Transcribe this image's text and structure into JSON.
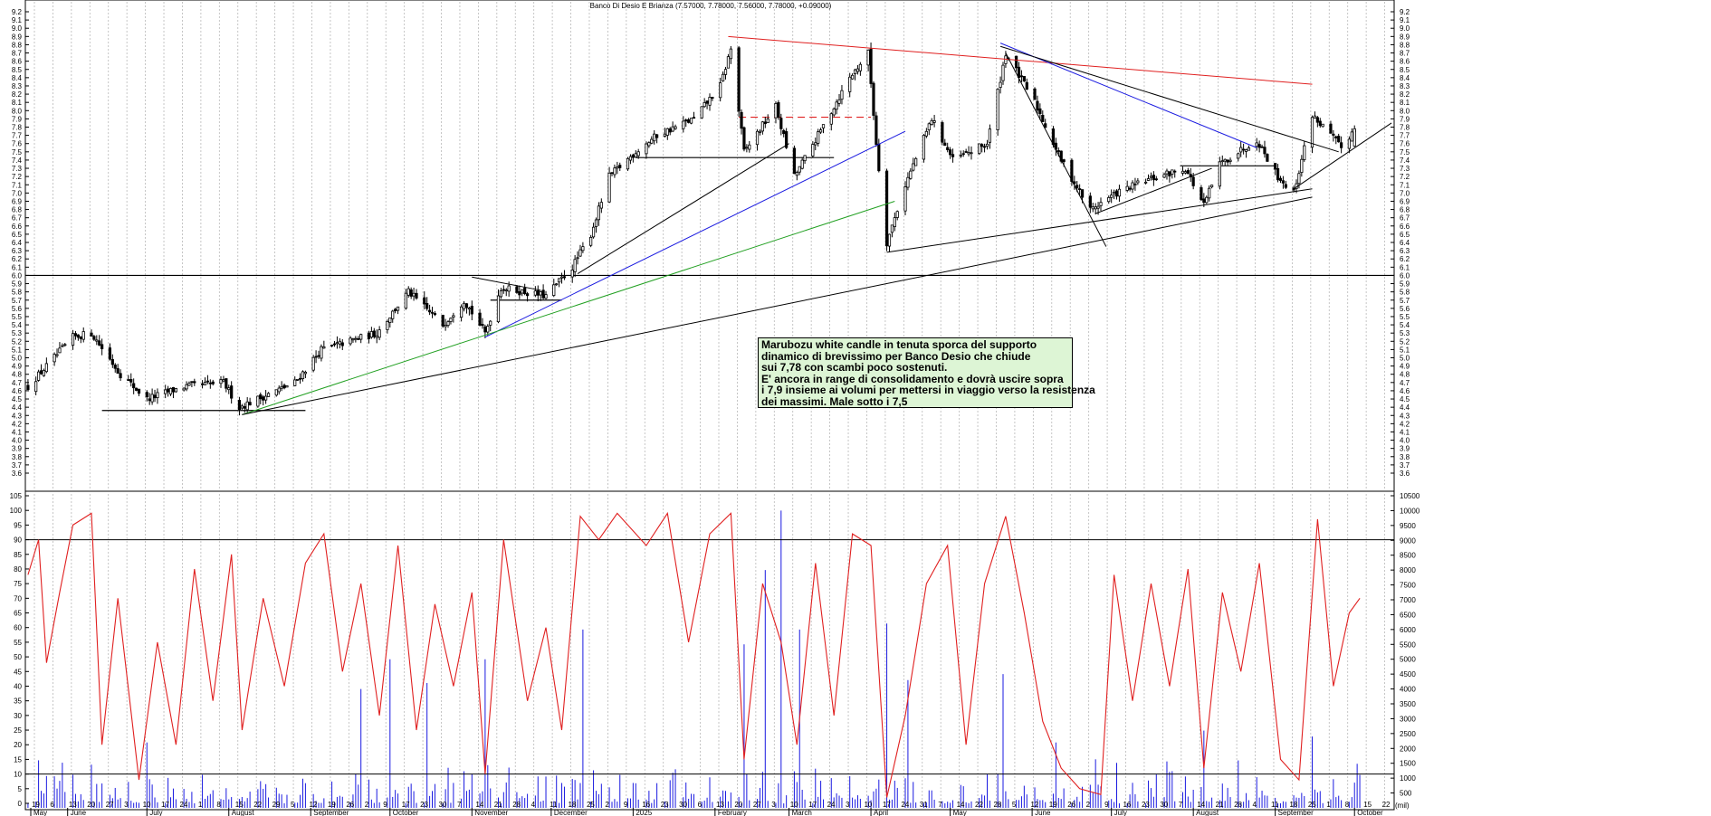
{
  "title": "Banco Di Desio E Brianza (7.57000, 7.78000, 7.56000, 7.78000, +0.09000)",
  "annotation": {
    "lines": [
      "Marubozu white candle in tenuta sporca del supporto",
      "dinamico di brevissimo per Banco Desio che chiude",
      "sui 7,78 con scambi poco sostenuti.",
      "E' ancora in range di consolidamento e dovrà uscire sopra",
      "i 7,9 insieme ai volumi per mettersi in viaggio verso la resistenza",
      "dei massimi. Male sotto i 7,5"
    ]
  },
  "price_axis_ticks": [
    "9.2",
    "9.1",
    "9.0",
    "8.9",
    "8.8",
    "8.7",
    "8.6",
    "8.5",
    "8.4",
    "8.3",
    "8.2",
    "8.1",
    "8.0",
    "7.9",
    "7.8",
    "7.7",
    "7.6",
    "7.5",
    "7.4",
    "7.3",
    "7.2",
    "7.1",
    "7.0",
    "6.9",
    "6.8",
    "6.7",
    "6.6",
    "6.5",
    "6.4",
    "6.3",
    "6.2",
    "6.1",
    "6.0",
    "5.9",
    "5.8",
    "5.7",
    "5.6",
    "5.5",
    "5.4",
    "5.3",
    "5.2",
    "5.1",
    "5.0",
    "4.9",
    "4.8",
    "4.7",
    "4.6",
    "4.5",
    "4.4",
    "4.3",
    "4.2",
    "4.1",
    "4.0",
    "3.9",
    "3.8",
    "3.7",
    "3.6"
  ],
  "osc_axis_ticks": [
    "105",
    "100",
    "95",
    "90",
    "85",
    "80",
    "75",
    "70",
    "65",
    "60",
    "55",
    "50",
    "45",
    "40",
    "35",
    "30",
    "25",
    "20",
    "15",
    "10",
    "5",
    "0"
  ],
  "volume_axis_ticks": [
    "10500",
    "10000",
    "9500",
    "9000",
    "8500",
    "8000",
    "7500",
    "7000",
    "6500",
    "6000",
    "5500",
    "5000",
    "4500",
    "4000",
    "3500",
    "3000",
    "2500",
    "2000",
    "1500",
    "1000",
    "500"
  ],
  "volume_unit": "(mil)",
  "date_axis": {
    "days": [
      "19",
      "6",
      "13",
      "20",
      "27",
      "3",
      "10",
      "17",
      "24",
      "1",
      "8",
      "15",
      "22",
      "29",
      "5",
      "12",
      "19",
      "26",
      "2",
      "9",
      "17",
      "23",
      "30",
      "7",
      "14",
      "21",
      "28",
      "4",
      "11",
      "18",
      "25",
      "2",
      "9",
      "16",
      "23",
      "30",
      "6",
      "13",
      "20",
      "27",
      "3",
      "10",
      "17",
      "24",
      "3",
      "10",
      "17",
      "24",
      "31",
      "7",
      "14",
      "22",
      "28",
      "5",
      "12",
      "19",
      "26",
      "2",
      "9",
      "16",
      "23",
      "30",
      "7",
      "14",
      "21",
      "28",
      "4",
      "11",
      "18",
      "25",
      "1",
      "8",
      "15",
      "22",
      "29",
      "6",
      "13"
    ],
    "months": [
      "May",
      "June",
      "July",
      "August",
      "September",
      "October",
      "November",
      "December",
      "2025",
      "February",
      "March",
      "April",
      "May",
      "June",
      "July",
      "August",
      "September",
      "October"
    ]
  },
  "chart_data": {
    "type": "candlestick",
    "title": "Banco Di Desio E Brianza (7.57000, 7.78000, 7.56000, 7.78000, +0.09000)",
    "last_bar": {
      "open": 7.57,
      "high": 7.78,
      "low": 7.56,
      "close": 7.78,
      "change": 0.09
    },
    "x_range": [
      "May 2024",
      "October 2025"
    ],
    "price_range": [
      3.6,
      9.2
    ],
    "price_anchors": [
      {
        "date": "2024-05-17",
        "close": 4.65
      },
      {
        "date": "2024-06-03",
        "close": 5.25
      },
      {
        "date": "2024-06-10",
        "close": 5.3
      },
      {
        "date": "2024-06-21",
        "close": 4.8
      },
      {
        "date": "2024-07-01",
        "close": 4.5
      },
      {
        "date": "2024-07-15",
        "close": 4.65
      },
      {
        "date": "2024-07-30",
        "close": 4.7
      },
      {
        "date": "2024-08-05",
        "close": 4.4
      },
      {
        "date": "2024-08-26",
        "close": 4.7
      },
      {
        "date": "2024-09-05",
        "close": 5.1
      },
      {
        "date": "2024-09-26",
        "close": 5.3
      },
      {
        "date": "2024-10-08",
        "close": 5.8
      },
      {
        "date": "2024-10-21",
        "close": 5.4
      },
      {
        "date": "2024-10-29",
        "close": 5.7
      },
      {
        "date": "2024-11-06",
        "close": 5.3
      },
      {
        "date": "2024-11-12",
        "close": 5.85
      },
      {
        "date": "2024-11-29",
        "close": 5.75
      },
      {
        "date": "2024-12-09",
        "close": 6.1
      },
      {
        "date": "2024-12-16",
        "close": 6.5
      },
      {
        "date": "2024-12-23",
        "close": 7.2
      },
      {
        "date": "2025-01-02",
        "close": 7.5
      },
      {
        "date": "2025-01-10",
        "close": 7.7
      },
      {
        "date": "2025-01-24",
        "close": 7.9
      },
      {
        "date": "2025-02-03",
        "close": 8.3
      },
      {
        "date": "2025-02-07",
        "close": 8.75
      },
      {
        "date": "2025-02-12",
        "close": 7.5
      },
      {
        "date": "2025-02-24",
        "close": 8.05
      },
      {
        "date": "2025-03-03",
        "close": 7.2
      },
      {
        "date": "2025-03-12",
        "close": 7.7
      },
      {
        "date": "2025-03-24",
        "close": 8.4
      },
      {
        "date": "2025-03-31",
        "close": 8.7
      },
      {
        "date": "2025-04-03",
        "close": 7.6
      },
      {
        "date": "2025-04-07",
        "close": 6.4
      },
      {
        "date": "2025-04-14",
        "close": 7.1
      },
      {
        "date": "2025-04-24",
        "close": 7.9
      },
      {
        "date": "2025-05-02",
        "close": 7.4
      },
      {
        "date": "2025-05-15",
        "close": 7.6
      },
      {
        "date": "2025-05-22",
        "close": 8.7
      },
      {
        "date": "2025-06-02",
        "close": 8.1
      },
      {
        "date": "2025-06-12",
        "close": 7.4
      },
      {
        "date": "2025-06-23",
        "close": 6.8
      },
      {
        "date": "2025-07-03",
        "close": 7.0
      },
      {
        "date": "2025-07-14",
        "close": 7.15
      },
      {
        "date": "2025-07-29",
        "close": 7.3
      },
      {
        "date": "2025-08-05",
        "close": 6.85
      },
      {
        "date": "2025-08-11",
        "close": 7.35
      },
      {
        "date": "2025-08-25",
        "close": 7.65
      },
      {
        "date": "2025-09-02",
        "close": 7.2
      },
      {
        "date": "2025-09-08",
        "close": 7.0
      },
      {
        "date": "2025-09-15",
        "close": 7.95
      },
      {
        "date": "2025-09-22",
        "close": 7.7
      },
      {
        "date": "2025-09-26",
        "close": 7.55
      },
      {
        "date": "2025-10-01",
        "close": 7.78
      }
    ],
    "horizontal_levels": [
      {
        "name": "",
        "price": 6.0,
        "color": "#000000",
        "full_width": true
      },
      {
        "name": "",
        "price": 7.43,
        "color": "#000000"
      },
      {
        "name": "",
        "price": 7.92,
        "color": "#e02020",
        "dashed": true
      },
      {
        "name": "",
        "price": 7.33,
        "color": "#000000"
      },
      {
        "name": "",
        "price": 5.7,
        "color": "#000000"
      },
      {
        "name": "",
        "price": 4.36,
        "color": "#000000"
      }
    ],
    "trendlines": [
      {
        "color": "#e02020",
        "from": {
          "date": "2025-02-06",
          "price": 8.9
        },
        "to": {
          "date": "2025-09-15",
          "price": 8.32
        }
      },
      {
        "color": "#1a1ae0",
        "from": {
          "date": "2024-11-06",
          "price": 5.25
        },
        "to": {
          "date": "2025-04-14",
          "price": 7.75
        }
      },
      {
        "color": "#1a1ae0",
        "from": {
          "date": "2025-05-20",
          "price": 8.82
        },
        "to": {
          "date": "2025-08-25",
          "price": 7.55
        }
      },
      {
        "color": "#22a022",
        "from": {
          "date": "2024-08-06",
          "price": 4.31
        },
        "to": {
          "date": "2025-04-10",
          "price": 6.9
        }
      },
      {
        "color": "#000000",
        "from": {
          "date": "2024-08-06",
          "price": 4.31
        },
        "to": {
          "date": "2025-09-15",
          "price": 6.95
        }
      },
      {
        "color": "#000000",
        "from": {
          "date": "2024-12-11",
          "price": 6.02
        },
        "to": {
          "date": "2025-03-01",
          "price": 7.6
        }
      },
      {
        "color": "#000000",
        "from": {
          "date": "2025-04-07",
          "price": 6.28
        },
        "to": {
          "date": "2025-09-15",
          "price": 7.05
        }
      },
      {
        "color": "#000000",
        "from": {
          "date": "2025-05-20",
          "price": 8.78
        },
        "to": {
          "date": "2025-09-25",
          "price": 7.5
        }
      },
      {
        "color": "#000000",
        "from": {
          "date": "2025-05-22",
          "price": 8.7
        },
        "to": {
          "date": "2025-06-29",
          "price": 6.35
        }
      },
      {
        "color": "#000000",
        "from": {
          "date": "2025-06-25",
          "price": 6.75
        },
        "to": {
          "date": "2025-08-08",
          "price": 7.3
        }
      },
      {
        "color": "#000000",
        "from": {
          "date": "2025-09-08",
          "price": 7.05
        },
        "to": {
          "date": "2025-10-15",
          "price": 7.85
        }
      },
      {
        "color": "#000000",
        "from": {
          "date": "2024-11-01",
          "price": 5.98
        },
        "to": {
          "date": "2024-11-27",
          "price": 5.82
        }
      }
    ],
    "oscillator": {
      "color": "#e02020",
      "range": [
        0,
        105
      ],
      "reference_levels": [
        90,
        10
      ],
      "points": [
        {
          "date": "2024-05-17",
          "value": 78
        },
        {
          "date": "2024-05-21",
          "value": 90
        },
        {
          "date": "2024-05-24",
          "value": 48
        },
        {
          "date": "2024-05-29",
          "value": 72
        },
        {
          "date": "2024-06-03",
          "value": 95
        },
        {
          "date": "2024-06-10",
          "value": 99
        },
        {
          "date": "2024-06-14",
          "value": 20
        },
        {
          "date": "2024-06-20",
          "value": 70
        },
        {
          "date": "2024-06-28",
          "value": 8
        },
        {
          "date": "2024-07-05",
          "value": 55
        },
        {
          "date": "2024-07-12",
          "value": 20
        },
        {
          "date": "2024-07-19",
          "value": 80
        },
        {
          "date": "2024-07-26",
          "value": 35
        },
        {
          "date": "2024-08-02",
          "value": 85
        },
        {
          "date": "2024-08-06",
          "value": 25
        },
        {
          "date": "2024-08-14",
          "value": 70
        },
        {
          "date": "2024-08-22",
          "value": 40
        },
        {
          "date": "2024-08-30",
          "value": 82
        },
        {
          "date": "2024-09-06",
          "value": 92
        },
        {
          "date": "2024-09-13",
          "value": 45
        },
        {
          "date": "2024-09-20",
          "value": 75
        },
        {
          "date": "2024-09-27",
          "value": 30
        },
        {
          "date": "2024-10-04",
          "value": 88
        },
        {
          "date": "2024-10-11",
          "value": 25
        },
        {
          "date": "2024-10-18",
          "value": 68
        },
        {
          "date": "2024-10-25",
          "value": 40
        },
        {
          "date": "2024-11-01",
          "value": 72
        },
        {
          "date": "2024-11-06",
          "value": 10
        },
        {
          "date": "2024-11-13",
          "value": 90
        },
        {
          "date": "2024-11-22",
          "value": 35
        },
        {
          "date": "2024-11-29",
          "value": 60
        },
        {
          "date": "2024-12-05",
          "value": 25
        },
        {
          "date": "2024-12-12",
          "value": 98
        },
        {
          "date": "2024-12-19",
          "value": 90
        },
        {
          "date": "2024-12-26",
          "value": 99
        },
        {
          "date": "2025-01-06",
          "value": 88
        },
        {
          "date": "2025-01-14",
          "value": 99
        },
        {
          "date": "2025-01-22",
          "value": 55
        },
        {
          "date": "2025-01-30",
          "value": 92
        },
        {
          "date": "2025-02-07",
          "value": 99
        },
        {
          "date": "2025-02-12",
          "value": 15
        },
        {
          "date": "2025-02-19",
          "value": 75
        },
        {
          "date": "2025-02-26",
          "value": 55
        },
        {
          "date": "2025-03-04",
          "value": 20
        },
        {
          "date": "2025-03-11",
          "value": 82
        },
        {
          "date": "2025-03-18",
          "value": 30
        },
        {
          "date": "2025-03-25",
          "value": 92
        },
        {
          "date": "2025-04-01",
          "value": 88
        },
        {
          "date": "2025-04-07",
          "value": 2
        },
        {
          "date": "2025-04-14",
          "value": 30
        },
        {
          "date": "2025-04-22",
          "value": 75
        },
        {
          "date": "2025-04-30",
          "value": 88
        },
        {
          "date": "2025-05-07",
          "value": 20
        },
        {
          "date": "2025-05-14",
          "value": 75
        },
        {
          "date": "2025-05-22",
          "value": 98
        },
        {
          "date": "2025-05-29",
          "value": 65
        },
        {
          "date": "2025-06-05",
          "value": 28
        },
        {
          "date": "2025-06-12",
          "value": 12
        },
        {
          "date": "2025-06-19",
          "value": 5
        },
        {
          "date": "2025-06-27",
          "value": 3
        },
        {
          "date": "2025-07-02",
          "value": 78
        },
        {
          "date": "2025-07-09",
          "value": 35
        },
        {
          "date": "2025-07-16",
          "value": 75
        },
        {
          "date": "2025-07-23",
          "value": 40
        },
        {
          "date": "2025-07-30",
          "value": 80
        },
        {
          "date": "2025-08-05",
          "value": 12
        },
        {
          "date": "2025-08-12",
          "value": 72
        },
        {
          "date": "2025-08-19",
          "value": 45
        },
        {
          "date": "2025-08-26",
          "value": 82
        },
        {
          "date": "2025-09-03",
          "value": 15
        },
        {
          "date": "2025-09-10",
          "value": 8
        },
        {
          "date": "2025-09-17",
          "value": 97
        },
        {
          "date": "2025-09-23",
          "value": 40
        },
        {
          "date": "2025-09-29",
          "value": 65
        },
        {
          "date": "2025-10-03",
          "value": 70
        }
      ]
    },
    "volume": {
      "color": "#1a1ae0",
      "unit": "(mil)",
      "range": [
        0,
        10500
      ],
      "peaks": [
        {
          "date": "2024-05-21",
          "value": 1600
        },
        {
          "date": "2024-07-01",
          "value": 2200
        },
        {
          "date": "2024-09-20",
          "value": 4000
        },
        {
          "date": "2024-10-01",
          "value": 5000
        },
        {
          "date": "2024-10-15",
          "value": 4200
        },
        {
          "date": "2024-11-06",
          "value": 5000
        },
        {
          "date": "2024-12-13",
          "value": 6000
        },
        {
          "date": "2025-02-12",
          "value": 5500
        },
        {
          "date": "2025-02-20",
          "value": 8000
        },
        {
          "date": "2025-02-26",
          "value": 10000
        },
        {
          "date": "2025-03-05",
          "value": 6000
        },
        {
          "date": "2025-04-07",
          "value": 6200
        },
        {
          "date": "2025-04-15",
          "value": 4300
        },
        {
          "date": "2025-05-21",
          "value": 4500
        },
        {
          "date": "2025-06-10",
          "value": 2200
        },
        {
          "date": "2025-08-05",
          "value": 2600
        },
        {
          "date": "2025-09-15",
          "value": 2400
        }
      ]
    }
  }
}
